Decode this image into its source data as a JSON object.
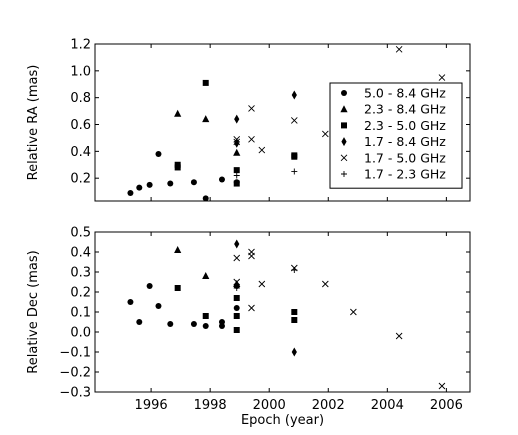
{
  "chart_data": [
    {
      "type": "scatter",
      "ylabel": "Relative RA (mas)",
      "xlabel": "",
      "xlim": [
        1994.1,
        2006.8
      ],
      "ylim": [
        0.03,
        1.2
      ],
      "yticks": [
        "0.2",
        "0.4",
        "0.6",
        "0.8",
        "1.0",
        "1.2"
      ],
      "ytick_values": [
        0.2,
        0.4,
        0.6,
        0.8,
        1.0,
        1.2
      ],
      "xtick_values": [
        1996,
        1998,
        2000,
        2002,
        2004,
        2006
      ],
      "legend_position": "right",
      "series": [
        {
          "name": "5.0 - 8.4 GHz",
          "marker": "circle",
          "x": [
            1995.3,
            1995.6,
            1995.95,
            1996.25,
            1996.65,
            1997.45,
            1997.85,
            1998.4,
            1998.9
          ],
          "y": [
            0.09,
            0.13,
            0.15,
            0.38,
            0.16,
            0.17,
            0.05,
            0.19,
            0.17
          ]
        },
        {
          "name": "2.3 - 8.4 GHz",
          "marker": "triangle",
          "x": [
            1996.9,
            1997.85,
            1998.9
          ],
          "y": [
            0.68,
            0.64,
            0.39
          ]
        },
        {
          "name": "2.3 - 5.0 GHz",
          "marker": "square",
          "x": [
            1996.9,
            1996.9,
            1997.85,
            1998.9,
            1998.9,
            2000.85,
            2000.85
          ],
          "y": [
            0.3,
            0.28,
            0.91,
            0.26,
            0.16,
            0.37,
            0.36
          ]
        },
        {
          "name": "1.7 - 8.4 GHz",
          "marker": "diamond",
          "x": [
            1998.9,
            1998.9,
            2000.85
          ],
          "y": [
            0.64,
            0.46,
            0.82
          ]
        },
        {
          "name": "1.7 - 5.0 GHz",
          "marker": "x",
          "x": [
            1998.9,
            1998.9,
            1999.4,
            1999.4,
            1999.75,
            2000.85,
            2001.9,
            2004.4,
            2005.85
          ],
          "y": [
            0.49,
            0.47,
            0.72,
            0.49,
            0.41,
            0.63,
            0.53,
            1.16,
            0.95
          ]
        },
        {
          "name": "1.7 - 2.3 GHz",
          "marker": "plus",
          "x": [
            1998.9,
            2000.85
          ],
          "y": [
            0.22,
            0.25
          ]
        }
      ]
    },
    {
      "type": "scatter",
      "ylabel": "Relative Dec (mas)",
      "xlabel": "Epoch (year)",
      "xlim": [
        1994.1,
        2006.8
      ],
      "ylim": [
        -0.3,
        0.5
      ],
      "yticks": [
        "−0.3",
        "−0.2",
        "−0.1",
        "0.0",
        "0.1",
        "0.2",
        "0.3",
        "0.4",
        "0.5"
      ],
      "ytick_values": [
        -0.3,
        -0.2,
        -0.1,
        0.0,
        0.1,
        0.2,
        0.3,
        0.4,
        0.5
      ],
      "xticks": [
        "1996",
        "1998",
        "2000",
        "2002",
        "2004",
        "2006"
      ],
      "xtick_values": [
        1996,
        1998,
        2000,
        2002,
        2004,
        2006
      ],
      "series": [
        {
          "name": "5.0 - 8.4 GHz",
          "marker": "circle",
          "x": [
            1995.3,
            1995.6,
            1995.95,
            1996.25,
            1996.65,
            1997.45,
            1997.85,
            1998.4,
            1998.4,
            1998.9,
            1998.9
          ],
          "y": [
            0.15,
            0.05,
            0.23,
            0.13,
            0.04,
            0.04,
            0.03,
            0.05,
            0.03,
            0.23,
            0.12
          ]
        },
        {
          "name": "2.3 - 8.4 GHz",
          "marker": "triangle",
          "x": [
            1996.9,
            1997.85,
            1998.9
          ],
          "y": [
            0.41,
            0.28,
            0.24
          ]
        },
        {
          "name": "2.3 - 5.0 GHz",
          "marker": "square",
          "x": [
            1996.9,
            1997.85,
            1998.9,
            1998.9,
            1998.9,
            2000.85,
            2000.85
          ],
          "y": [
            0.22,
            0.08,
            0.17,
            0.08,
            0.01,
            0.1,
            0.06
          ]
        },
        {
          "name": "1.7 - 8.4 GHz",
          "marker": "diamond",
          "x": [
            1998.9,
            2000.85
          ],
          "y": [
            0.44,
            -0.1
          ]
        },
        {
          "name": "1.7 - 5.0 GHz",
          "marker": "x",
          "x": [
            1998.9,
            1998.9,
            1999.4,
            1999.4,
            1999.4,
            1999.75,
            2000.85,
            2001.9,
            2002.85,
            2004.4,
            2005.85
          ],
          "y": [
            0.37,
            0.25,
            0.4,
            0.38,
            0.12,
            0.24,
            0.32,
            0.24,
            0.1,
            -0.02,
            -0.27
          ]
        },
        {
          "name": "1.7 - 2.3 GHz",
          "marker": "plus",
          "x": [
            1998.9,
            2000.85
          ],
          "y": [
            0.22,
            0.31
          ]
        }
      ]
    }
  ]
}
